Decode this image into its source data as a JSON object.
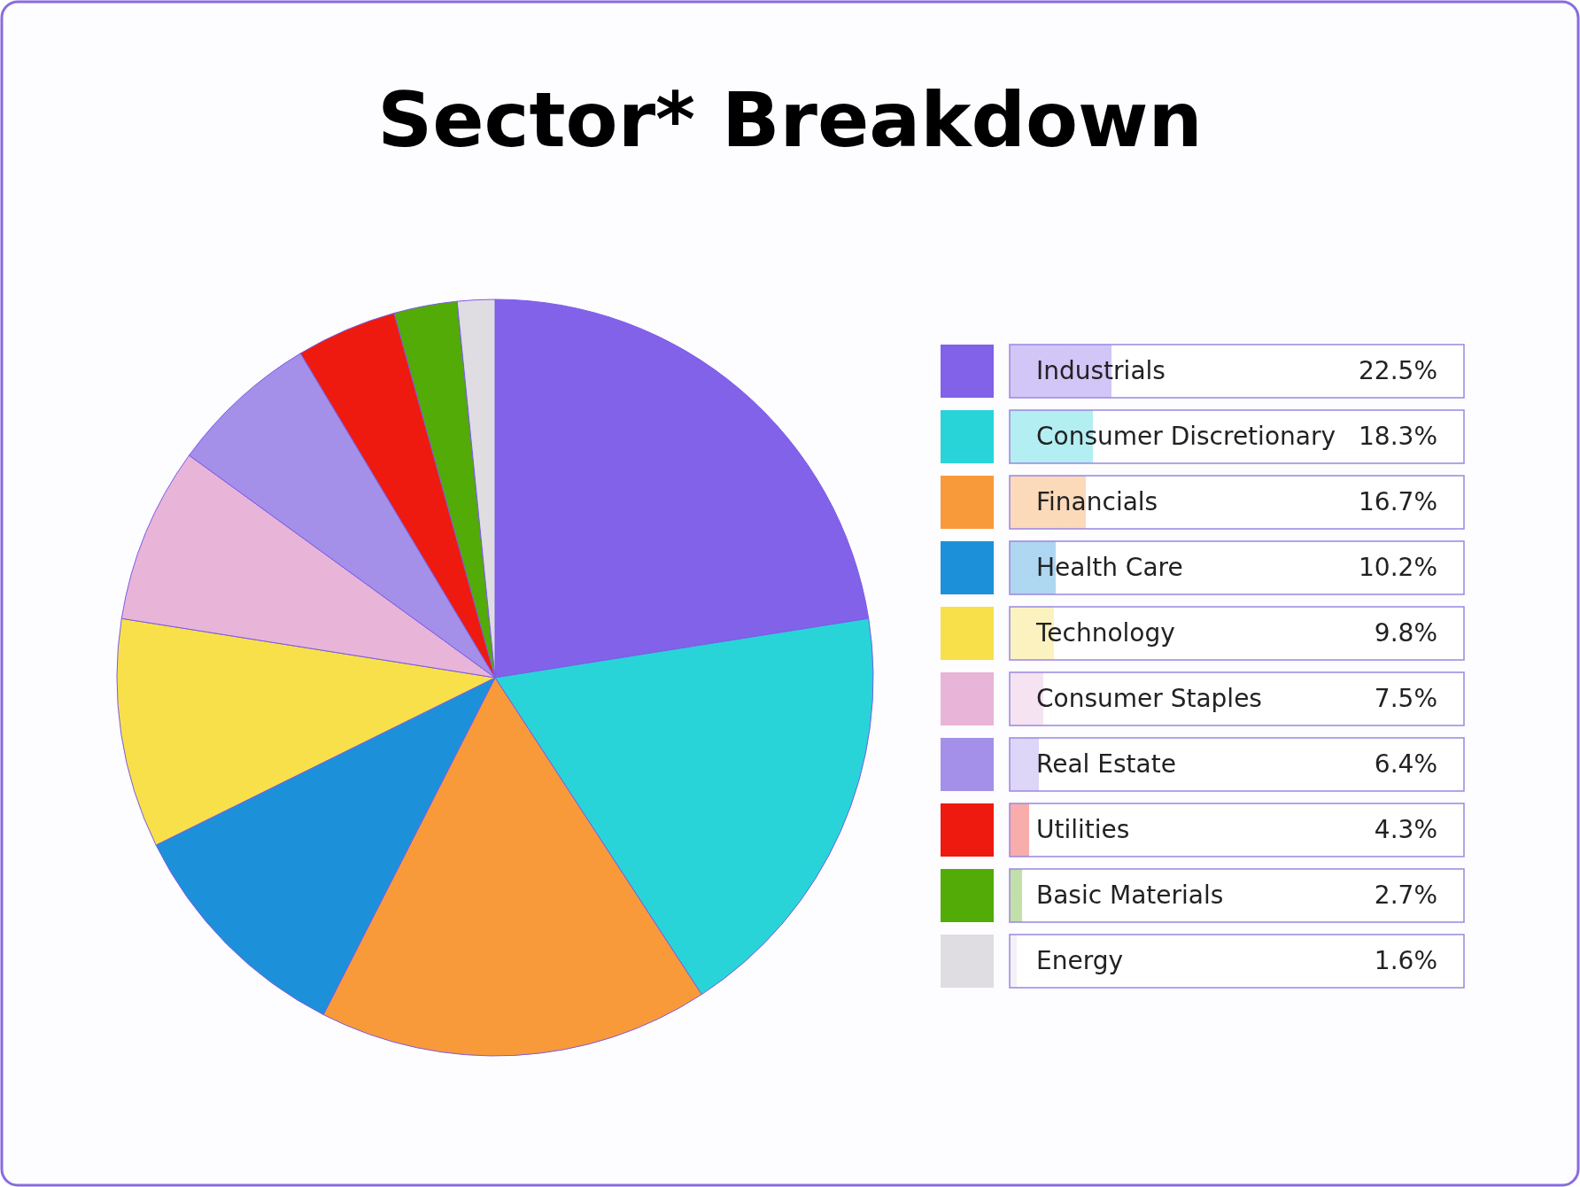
{
  "chart_data": {
    "type": "pie",
    "title": "Sector* Breakdown",
    "categories": [
      "Industrials",
      "Consumer Discretionary",
      "Financials",
      "Health Care",
      "Technology",
      "Consumer Staples",
      "Real Estate",
      "Utilities",
      "Basic Materials",
      "Energy"
    ],
    "values": [
      22.5,
      18.3,
      16.7,
      10.2,
      9.8,
      7.5,
      6.4,
      4.3,
      2.7,
      1.6
    ],
    "colors": [
      "#8162e8",
      "#29d4d9",
      "#f89a3a",
      "#1c91d9",
      "#f7e04a",
      "#e8b4d8",
      "#a48fe9",
      "#ee1a10",
      "#52ab06",
      "#e0dde2"
    ],
    "value_labels": [
      "22.5%",
      "18.3%",
      "16.7%",
      "10.2%",
      "9.8%",
      "7.5%",
      "6.4%",
      "4.3%",
      "2.7%",
      "1.6%"
    ],
    "legend": "right"
  }
}
